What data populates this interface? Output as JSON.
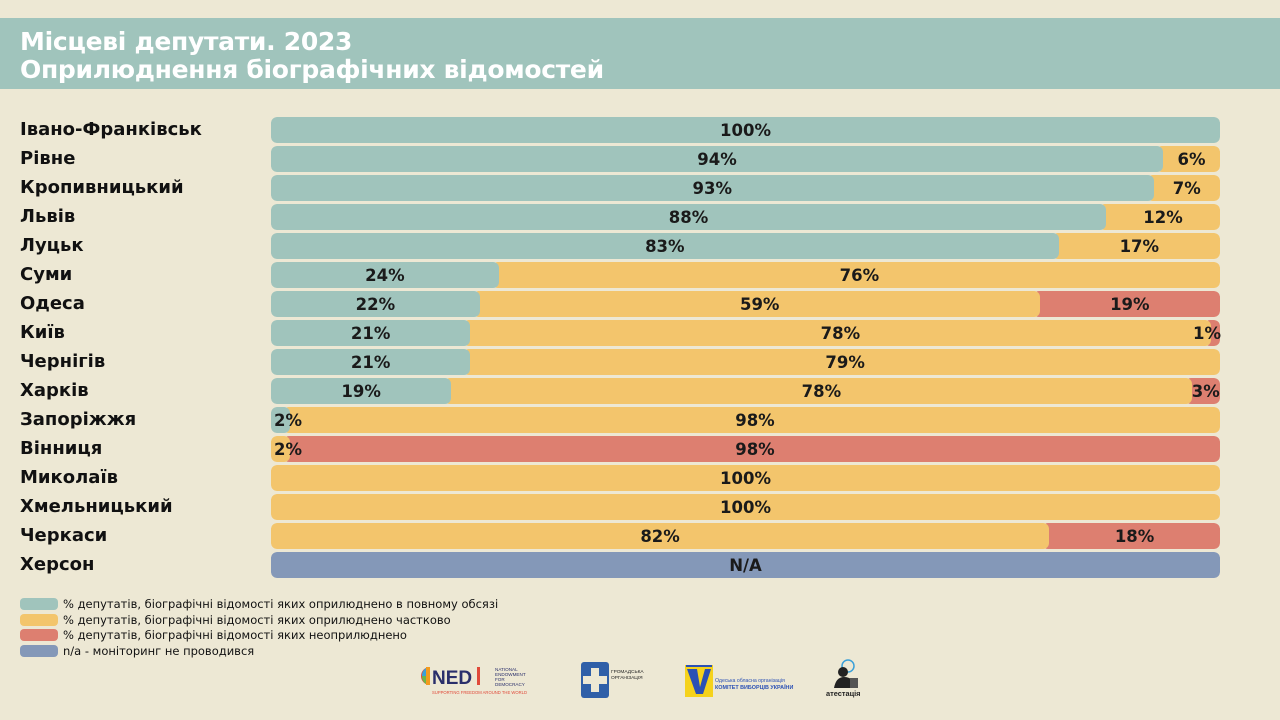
{
  "header": {
    "title_line1": "Місцеві депутати. 2023",
    "title_line2": "Оприлюднення біографічних відомостей"
  },
  "colors": {
    "full": "#a0c4bc",
    "partial": "#f3c56c",
    "none": "#dd7f70",
    "na": "#8498b8",
    "header_bg": "#a0c4bc",
    "page_bg": "#ede8d4"
  },
  "chart_data": {
    "type": "bar",
    "orientation": "horizontal",
    "stacked": true,
    "categories": [
      "Івано-Франківськ",
      "Рівне",
      "Кропивницький",
      "Львів",
      "Луцьк",
      "Суми",
      "Одеса",
      "Київ",
      "Чернігів",
      "Харків",
      "Запоріжжя",
      "Вінниця",
      "Миколаїв",
      "Хмельницький",
      "Черкаси",
      "Херсон"
    ],
    "series": [
      {
        "name": "% депутатів, біографічні відомості яких оприлюднено в повному обсязі",
        "key": "full",
        "values": [
          100,
          94,
          93,
          88,
          83,
          24,
          22,
          21,
          21,
          19,
          2,
          null,
          null,
          null,
          null,
          null
        ]
      },
      {
        "name": "% депутатів, біографічні відомості яких оприлюднено частково",
        "key": "partial",
        "values": [
          null,
          6,
          7,
          12,
          17,
          76,
          59,
          78,
          79,
          78,
          98,
          2,
          100,
          100,
          82,
          null
        ]
      },
      {
        "name": "% депутатів, біографічні відомості яких неоприлюднено",
        "key": "none",
        "values": [
          null,
          null,
          null,
          null,
          null,
          null,
          19,
          1,
          null,
          3,
          null,
          98,
          null,
          null,
          18,
          null
        ]
      },
      {
        "name": "n/a - моніторинг не проводився",
        "key": "na",
        "values": [
          null,
          null,
          null,
          null,
          null,
          null,
          null,
          null,
          null,
          null,
          null,
          null,
          null,
          null,
          null,
          "N/A"
        ]
      }
    ],
    "xlim": [
      0,
      100
    ],
    "value_suffix": "%"
  },
  "legend": [
    {
      "key": "full",
      "text": "% депутатів, біографічні відомості яких оприлюднено в повному обсязі"
    },
    {
      "key": "partial",
      "text": "% депутатів, біографічні відомості яких оприлюднено частково"
    },
    {
      "key": "none",
      "text": "% депутатів, біографічні відомості яких неоприлюднено"
    },
    {
      "key": "na",
      "text": "n/a - моніторинг не проводився"
    }
  ],
  "logos": {
    "ned_name": "NED",
    "ned_sub1": "NATIONAL",
    "ned_sub2": "ENDOWMENT",
    "ned_sub3": "FOR",
    "ned_sub4": "DEMOCRACY",
    "ned_tagline": "SUPPORTING FREEDOM AROUND THE WORLD",
    "org2_line1": "ГРОМАДСЬКА",
    "org2_line2": "ОРГАНІЗАЦІЯ",
    "cvu_line1": "Одеська обласна організація",
    "cvu_line2": "КОМІТЕТ ВИБОРЦІВ УКРАЇНИ",
    "attest_name": "атестація"
  }
}
